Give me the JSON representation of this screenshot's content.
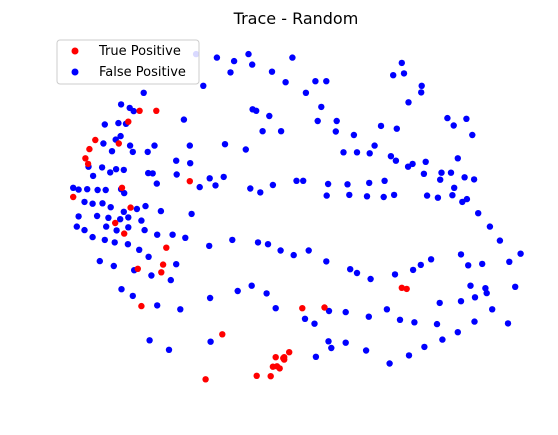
{
  "chart_data": {
    "type": "scatter",
    "title": "Trace - Random",
    "axes_visible": false,
    "grid": false,
    "legend_position": "top-left",
    "xlim": [
      0,
      1
    ],
    "ylim": [
      0,
      1
    ],
    "series": [
      {
        "name": "True Positive",
        "color": "#ff0000",
        "points": [
          [
            0.154,
            0.799
          ],
          [
            0.191,
            0.799
          ],
          [
            0.129,
            0.768
          ],
          [
            0.056,
            0.716
          ],
          [
            0.108,
            0.706
          ],
          [
            0.043,
            0.69
          ],
          [
            0.034,
            0.664
          ],
          [
            0.04,
            0.648
          ],
          [
            0.265,
            0.599
          ],
          [
            0.115,
            0.58
          ],
          [
            0.007,
            0.554
          ],
          [
            0.134,
            0.524
          ],
          [
            0.1,
            0.48
          ],
          [
            0.12,
            0.45
          ],
          [
            0.213,
            0.41
          ],
          [
            0.206,
            0.362
          ],
          [
            0.202,
            0.34
          ],
          [
            0.15,
            0.35
          ],
          [
            0.158,
            0.244
          ],
          [
            0.563,
            0.24
          ],
          [
            0.514,
            0.238
          ],
          [
            0.337,
            0.164
          ],
          [
            0.485,
            0.113
          ],
          [
            0.474,
            0.099
          ],
          [
            0.474,
            0.092
          ],
          [
            0.472,
            0.096
          ],
          [
            0.455,
            0.099
          ],
          [
            0.464,
            0.067
          ],
          [
            0.458,
            0.073
          ],
          [
            0.449,
            0.072
          ],
          [
            0.444,
            0.045
          ],
          [
            0.413,
            0.046
          ],
          [
            0.745,
            0.293
          ],
          [
            0.734,
            0.296
          ],
          [
            0.3,
            0.036
          ]
        ]
      },
      {
        "name": "False Positive",
        "color": "#0000ff",
        "points": [
          [
            0.325,
            0.95
          ],
          [
            0.363,
            0.94
          ],
          [
            0.395,
            0.96
          ],
          [
            0.492,
            0.95
          ],
          [
            0.734,
            0.935
          ],
          [
            0.715,
            0.9
          ],
          [
            0.739,
            0.905
          ],
          [
            0.567,
            0.883
          ],
          [
            0.543,
            0.883
          ],
          [
            0.295,
            0.87
          ],
          [
            0.163,
            0.85
          ],
          [
            0.778,
            0.87
          ],
          [
            0.777,
            0.851
          ],
          [
            0.749,
            0.823
          ],
          [
            0.113,
            0.817
          ],
          [
            0.132,
            0.807
          ],
          [
            0.141,
            0.798
          ],
          [
            0.404,
            0.803
          ],
          [
            0.412,
            0.799
          ],
          [
            0.441,
            0.784
          ],
          [
            0.252,
            0.774
          ],
          [
            0.548,
            0.77
          ],
          [
            0.835,
            0.778
          ],
          [
            0.877,
            0.776
          ],
          [
            0.107,
            0.764
          ],
          [
            0.124,
            0.762
          ],
          [
            0.077,
            0.76
          ],
          [
            0.426,
            0.741
          ],
          [
            0.467,
            0.741
          ],
          [
            0.588,
            0.74
          ],
          [
            0.688,
            0.756
          ],
          [
            0.723,
            0.748
          ],
          [
            0.849,
            0.757
          ],
          [
            0.89,
            0.73
          ],
          [
            0.112,
            0.727
          ],
          [
            0.101,
            0.717
          ],
          [
            0.074,
            0.706
          ],
          [
            0.133,
            0.7
          ],
          [
            0.187,
            0.7
          ],
          [
            0.265,
            0.7
          ],
          [
            0.343,
            0.704
          ],
          [
            0.093,
            0.684
          ],
          [
            0.139,
            0.682
          ],
          [
            0.172,
            0.682
          ],
          [
            0.235,
            0.657
          ],
          [
            0.266,
            0.65
          ],
          [
            0.389,
            0.689
          ],
          [
            0.605,
            0.681
          ],
          [
            0.635,
            0.681
          ],
          [
            0.663,
            0.678
          ],
          [
            0.721,
            0.657
          ],
          [
            0.758,
            0.648
          ],
          [
            0.787,
            0.654
          ],
          [
            0.858,
            0.664
          ],
          [
            0.041,
            0.64
          ],
          [
            0.071,
            0.638
          ],
          [
            0.102,
            0.633
          ],
          [
            0.051,
            0.614
          ],
          [
            0.089,
            0.624
          ],
          [
            0.119,
            0.631
          ],
          [
            0.173,
            0.622
          ],
          [
            0.183,
            0.621
          ],
          [
            0.236,
            0.618
          ],
          [
            0.309,
            0.607
          ],
          [
            0.34,
            0.611
          ],
          [
            0.501,
            0.6
          ],
          [
            0.516,
            0.6
          ],
          [
            0.571,
            0.591
          ],
          [
            0.614,
            0.59
          ],
          [
            0.662,
            0.594
          ],
          [
            0.696,
            0.6
          ],
          [
            0.822,
            0.623
          ],
          [
            0.843,
            0.623
          ],
          [
            0.873,
            0.61
          ],
          [
            0.894,
            0.604
          ],
          [
            0.007,
            0.58
          ],
          [
            0.019,
            0.575
          ],
          [
            0.038,
            0.576
          ],
          [
            0.061,
            0.574
          ],
          [
            0.079,
            0.574
          ],
          [
            0.113,
            0.576
          ],
          [
            0.12,
            0.565
          ],
          [
            0.192,
            0.592
          ],
          [
            0.287,
            0.582
          ],
          [
            0.322,
            0.587
          ],
          [
            0.399,
            0.578
          ],
          [
            0.421,
            0.567
          ],
          [
            0.449,
            0.588
          ],
          [
            0.568,
            0.558
          ],
          [
            0.618,
            0.56
          ],
          [
            0.657,
            0.556
          ],
          [
            0.694,
            0.554
          ],
          [
            0.717,
            0.56
          ],
          [
            0.79,
            0.558
          ],
          [
            0.814,
            0.552
          ],
          [
            0.846,
            0.559
          ],
          [
            0.878,
            0.548
          ],
          [
            0.032,
            0.54
          ],
          [
            0.05,
            0.535
          ],
          [
            0.072,
            0.536
          ],
          [
            0.09,
            0.525
          ],
          [
            0.119,
            0.512
          ],
          [
            0.148,
            0.52
          ],
          [
            0.167,
            0.528
          ],
          [
            0.201,
            0.514
          ],
          [
            0.269,
            0.506
          ],
          [
            0.019,
            0.499
          ],
          [
            0.06,
            0.5
          ],
          [
            0.085,
            0.495
          ],
          [
            0.111,
            0.491
          ],
          [
            0.129,
            0.496
          ],
          [
            0.158,
            0.487
          ],
          [
            0.015,
            0.47
          ],
          [
            0.032,
            0.46
          ],
          [
            0.08,
            0.47
          ],
          [
            0.103,
            0.459
          ],
          [
            0.129,
            0.468
          ],
          [
            0.165,
            0.46
          ],
          [
            0.193,
            0.447
          ],
          [
            0.227,
            0.447
          ],
          [
            0.255,
            0.438
          ],
          [
            0.308,
            0.415
          ],
          [
            0.359,
            0.432
          ],
          [
            0.416,
            0.425
          ],
          [
            0.438,
            0.42
          ],
          [
            0.466,
            0.402
          ],
          [
            0.495,
            0.389
          ],
          [
            0.528,
            0.402
          ],
          [
            0.567,
            0.371
          ],
          [
            0.62,
            0.349
          ],
          [
            0.635,
            0.338
          ],
          [
            0.665,
            0.321
          ],
          [
            0.719,
            0.334
          ],
          [
            0.759,
            0.347
          ],
          [
            0.776,
            0.361
          ],
          [
            0.799,
            0.377
          ],
          [
            0.865,
            0.391
          ],
          [
            0.881,
            0.36
          ],
          [
            0.912,
            0.364
          ],
          [
            0.886,
            0.302
          ],
          [
            0.919,
            0.295
          ],
          [
            0.05,
            0.44
          ],
          [
            0.077,
            0.432
          ],
          [
            0.099,
            0.425
          ],
          [
            0.128,
            0.42
          ],
          [
            0.153,
            0.404
          ],
          [
            0.174,
            0.384
          ],
          [
            0.235,
            0.363
          ],
          [
            0.066,
            0.372
          ],
          [
            0.097,
            0.358
          ],
          [
            0.142,
            0.346
          ],
          [
            0.18,
            0.331
          ],
          [
            0.223,
            0.318
          ],
          [
            0.114,
            0.292
          ],
          [
            0.139,
            0.273
          ],
          [
            0.193,
            0.246
          ],
          [
            0.244,
            0.235
          ],
          [
            0.31,
            0.267
          ],
          [
            0.371,
            0.287
          ],
          [
            0.402,
            0.302
          ],
          [
            0.435,
            0.28
          ],
          [
            0.455,
            0.238
          ],
          [
            0.52,
            0.208
          ],
          [
            0.541,
            0.194
          ],
          [
            0.573,
            0.23
          ],
          [
            0.61,
            0.227
          ],
          [
            0.661,
            0.214
          ],
          [
            0.701,
            0.235
          ],
          [
            0.73,
            0.205
          ],
          [
            0.762,
            0.198
          ],
          [
            0.812,
            0.193
          ],
          [
            0.818,
            0.253
          ],
          [
            0.865,
            0.258
          ],
          [
            0.896,
            0.269
          ],
          [
            0.922,
            0.281
          ],
          [
            0.176,
            0.147
          ],
          [
            0.219,
            0.12
          ],
          [
            0.311,
            0.143
          ],
          [
            0.572,
            0.144
          ],
          [
            0.578,
            0.125
          ],
          [
            0.544,
            0.1
          ],
          [
            0.61,
            0.14
          ],
          [
            0.655,
            0.118
          ],
          [
            0.707,
            0.081
          ],
          [
            0.75,
            0.104
          ],
          [
            0.784,
            0.128
          ],
          [
            0.824,
            0.149
          ],
          [
            0.858,
            0.17
          ],
          [
            0.895,
            0.2
          ],
          [
            0.934,
            0.235
          ],
          [
            0.969,
            0.195
          ],
          [
            0.985,
            0.299
          ],
          [
            0.972,
            0.37
          ],
          [
            0.997,
            0.393
          ],
          [
            0.951,
            0.43
          ],
          [
            0.929,
            0.47
          ],
          [
            0.903,
            0.508
          ],
          [
            0.868,
            0.54
          ],
          [
            0.85,
            0.58
          ],
          [
            0.819,
            0.603
          ],
          [
            0.783,
            0.62
          ],
          [
            0.748,
            0.64
          ],
          [
            0.71,
            0.67
          ],
          [
            0.674,
            0.7
          ],
          [
            0.628,
            0.73
          ],
          [
            0.59,
            0.77
          ],
          [
            0.556,
            0.81
          ],
          [
            0.522,
            0.85
          ],
          [
            0.477,
            0.88
          ],
          [
            0.447,
            0.91
          ],
          [
            0.403,
            0.93
          ],
          [
            0.355,
            0.908
          ],
          [
            0.279,
            0.96
          ]
        ]
      }
    ]
  }
}
